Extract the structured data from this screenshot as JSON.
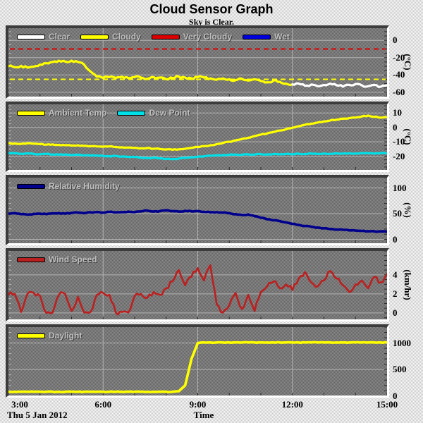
{
  "title": "Cloud Sensor Graph",
  "subtitle": "Sky is Clear.",
  "footer": {
    "date": "Thu 5 Jan 2012",
    "xlabel": "Time"
  },
  "x_axis": {
    "ticks": [
      {
        "label": "3:00",
        "value": 3
      },
      {
        "label": "6:00",
        "value": 6
      },
      {
        "label": "9:00",
        "value": 9
      },
      {
        "label": "12:00",
        "value": 12
      },
      {
        "label": "15:00",
        "value": 15
      }
    ],
    "gridlines": [
      6,
      9,
      12
    ],
    "range": [
      3,
      15
    ]
  },
  "colors": {
    "background": "#d9d9d9",
    "plot_background": "#7a7a7a",
    "gridline": "#b2b2b2",
    "axis": "#ffffff",
    "panel_border": "#3c3c3c",
    "legend_text": "#bfbfbf",
    "clear": "#ffffff",
    "cloudy": "#ffff00",
    "very_cloudy": "#dd0000",
    "wet": "#0000dd",
    "ambient_temp": "#ffff00",
    "dew_point": "#00e0e8",
    "relative_humidity": "#00008c",
    "wind_speed": "#bb2020",
    "daylight": "#ffff00"
  },
  "chart_data": [
    {
      "id": "cloud-condition",
      "type": "line",
      "unit": "(°C)",
      "ylim": [
        -65,
        14
      ],
      "yticks": [
        0,
        -20,
        -40,
        -60
      ],
      "legend": [
        {
          "label": "Clear",
          "color": "#ffffff"
        },
        {
          "label": "Cloudy",
          "color": "#ffff00"
        },
        {
          "label": "Very Cloudy",
          "color": "#dd0000"
        },
        {
          "label": "Wet",
          "color": "#0000dd"
        }
      ],
      "thresholds": [
        {
          "name": "very-cloudy-threshold",
          "value": -10,
          "color": "#dd0000"
        },
        {
          "name": "cloudy-threshold",
          "value": -45,
          "color": "#ffff00"
        }
      ],
      "x_start": 3,
      "x_end": 15,
      "x_step": 0.2,
      "series": [
        {
          "name": "Cloudy",
          "color": "#ffff00",
          "jitter": 1.3,
          "values": [
            -30,
            -31,
            -29.5,
            -31.5,
            -30.5,
            -28,
            -26.5,
            -25,
            -23.5,
            -24.5,
            -23.5,
            -25,
            -28,
            -36,
            -42,
            -43.5,
            -42.5,
            -43.5,
            -42,
            -43.5,
            -42.5,
            -43,
            -44.5,
            -42.5,
            -43,
            -45,
            -43.5,
            -42,
            -43,
            -44,
            -42.5,
            -43,
            -44,
            -45.5,
            -44,
            -45,
            -46,
            -44.5,
            -46.5,
            -45,
            -47,
            -48.5,
            -46.5,
            -48,
            -50,
            -51,
            null,
            null,
            null,
            null,
            null,
            null,
            null,
            null,
            null,
            null,
            null,
            null,
            null,
            null,
            null
          ]
        },
        {
          "name": "Clear",
          "color": "#ffffff",
          "jitter": 1.3,
          "values": [
            null,
            null,
            null,
            null,
            null,
            null,
            null,
            null,
            null,
            null,
            null,
            null,
            null,
            null,
            null,
            null,
            null,
            null,
            null,
            null,
            null,
            null,
            null,
            null,
            null,
            null,
            null,
            null,
            null,
            null,
            null,
            null,
            null,
            null,
            null,
            null,
            null,
            null,
            null,
            null,
            null,
            null,
            null,
            null,
            null,
            -51,
            -50,
            -52.5,
            -51,
            -53,
            -51.5,
            -50,
            -52,
            -53.5,
            -51.5,
            -50.5,
            -52,
            -53,
            -51.5,
            -53.5,
            -52
          ]
        }
      ]
    },
    {
      "id": "temperature",
      "type": "line",
      "unit": "(°C)",
      "ylim": [
        -29.5,
        16
      ],
      "yticks": [
        10,
        0,
        -10,
        -20
      ],
      "legend": [
        {
          "label": "Ambient Temp",
          "color": "#ffff00"
        },
        {
          "label": "Dew Point",
          "color": "#00e0e8"
        }
      ],
      "thresholds": [],
      "x_start": 3,
      "x_end": 15,
      "x_step": 0.2,
      "series": [
        {
          "name": "Ambient Temp",
          "color": "#ffff00",
          "jitter": 0.3,
          "values": [
            -11,
            -11.2,
            -11.5,
            -11,
            -11.3,
            -11.6,
            -12,
            -11.8,
            -12.2,
            -12.4,
            -12.6,
            -12.4,
            -12.8,
            -13,
            -13.2,
            -13.4,
            -13.2,
            -13.6,
            -13.8,
            -14,
            -14.2,
            -14.5,
            -14.3,
            -14.8,
            -15,
            -15.3,
            -15.5,
            -15.2,
            -14.8,
            -14.2,
            -13.6,
            -13,
            -12.4,
            -11.6,
            -10.8,
            -10,
            -9,
            -8,
            -7.2,
            -6,
            -5,
            -4.2,
            -3.2,
            -2.2,
            -1.2,
            -0.2,
            0.8,
            1.8,
            2.6,
            3.4,
            4.2,
            4.8,
            5.4,
            6,
            6.4,
            6.8,
            7.6,
            8.2,
            7.4,
            6.8,
            7
          ]
        },
        {
          "name": "Dew Point",
          "color": "#00e0e8",
          "jitter": 0.3,
          "values": [
            -17.8,
            -18,
            -18.3,
            -18,
            -18.4,
            -18.6,
            -18.4,
            -18.8,
            -19,
            -18.8,
            -19.2,
            -19,
            -19.4,
            -19.6,
            -19.4,
            -19.8,
            -20,
            -19.8,
            -20.2,
            -20.4,
            -20.6,
            -21,
            -21.3,
            -21,
            -21.5,
            -21.8,
            -22,
            -21.6,
            -21.2,
            -20.8,
            -20.4,
            -20,
            -19.6,
            -19.4,
            -19.2,
            -19,
            -18.8,
            -19,
            -18.7,
            -18.9,
            -18.6,
            -18.8,
            -18.5,
            -18.7,
            -18.4,
            -18.6,
            -18.3,
            -18.5,
            -18.2,
            -18.4,
            -18.1,
            -18.3,
            -18,
            -18.2,
            -17.9,
            -18.1,
            -17.8,
            -18,
            -18.2,
            -17.9,
            -18.1
          ]
        }
      ]
    },
    {
      "id": "humidity",
      "type": "line",
      "unit": "(%)",
      "ylim": [
        -7.5,
        120
      ],
      "yticks": [
        100,
        50,
        0
      ],
      "legend": [
        {
          "label": "Relative Humidity",
          "color": "#00008c"
        }
      ],
      "thresholds": [],
      "x_start": 3,
      "x_end": 15,
      "x_step": 0.2,
      "series": [
        {
          "name": "Relative Humidity",
          "color": "#00008c",
          "jitter": 0.8,
          "values": [
            50,
            51,
            49,
            48,
            49.5,
            50,
            49,
            50.5,
            51,
            50,
            51.5,
            52,
            51,
            52.5,
            53,
            52,
            53.5,
            52.5,
            53,
            54,
            53,
            54.5,
            56,
            54,
            55,
            56.5,
            55,
            54,
            55.5,
            54.5,
            55,
            53.5,
            52.5,
            53,
            52,
            51,
            49,
            47.5,
            48.5,
            45,
            42,
            39,
            37,
            35.5,
            33,
            30,
            28,
            26,
            24.5,
            23,
            21.5,
            20,
            19,
            18.5,
            17.5,
            17,
            16.5,
            16,
            15.5,
            15.5,
            15
          ]
        }
      ]
    },
    {
      "id": "wind",
      "type": "line",
      "unit": "(km/hr)",
      "ylim": [
        -0.67,
        6.5
      ],
      "yticks": [
        4,
        2,
        0
      ],
      "legend": [
        {
          "label": "Wind Speed",
          "color": "#bb2020"
        }
      ],
      "thresholds": [],
      "x_start": 3,
      "x_end": 15,
      "x_step": 0.2,
      "series": [
        {
          "name": "Wind Speed",
          "color": "#bb2020",
          "jitter": 0.25,
          "values": [
            1.9,
            2,
            0.1,
            2,
            2.1,
            1.8,
            0,
            0.05,
            1.9,
            2,
            0.2,
            1.7,
            0.05,
            0.1,
            1.9,
            2.1,
            1.9,
            0.05,
            0.1,
            0.05,
            1.8,
            2,
            1.6,
            2.2,
            1.9,
            2.6,
            3.3,
            4.5,
            2.9,
            3.8,
            4.7,
            3.4,
            5,
            0.9,
            0.05,
            0.8,
            2.1,
            0.4,
            1.9,
            0.2,
            2.2,
            2.8,
            3.3,
            2.6,
            3,
            2.4,
            3.6,
            4.3,
            3.2,
            2.8,
            3.4,
            4.4,
            3.6,
            2.9,
            2.2,
            3,
            3.4,
            2.6,
            3.8,
            3.2,
            4.1
          ]
        }
      ]
    },
    {
      "id": "daylight",
      "type": "line",
      "unit": "",
      "ylim": [
        10,
        1300
      ],
      "yticks": [
        1000,
        500,
        0
      ],
      "legend": [
        {
          "label": "Daylight",
          "color": "#ffff00"
        }
      ],
      "thresholds": [],
      "x_start": 3,
      "x_end": 15,
      "x_step": 0.2,
      "series": [
        {
          "name": "Daylight",
          "color": "#ffff00",
          "jitter": 6,
          "values": [
            80,
            80,
            80,
            80,
            80,
            80,
            80,
            80,
            80,
            80,
            80,
            80,
            80,
            80,
            80,
            80,
            80,
            80,
            80,
            80,
            80,
            80,
            80,
            80,
            80,
            80,
            80,
            90,
            200,
            700,
            1000,
            1010,
            1010,
            1010,
            1010,
            1010,
            1010,
            1010,
            1010,
            1010,
            1010,
            1010,
            1010,
            1010,
            1010,
            1010,
            1010,
            1010,
            1010,
            1010,
            1010,
            1010,
            1010,
            1010,
            1010,
            1010,
            1010,
            1010,
            1010,
            1010,
            1010
          ]
        }
      ]
    }
  ]
}
